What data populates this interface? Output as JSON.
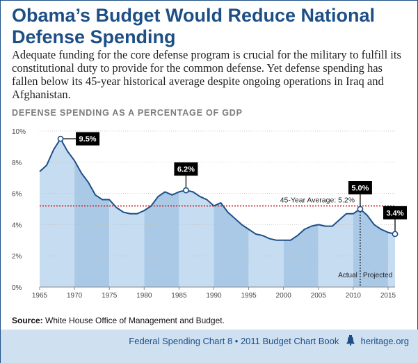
{
  "header": {
    "title_line1": "Obama’s Budget Would Reduce National",
    "title_line2": "Defense Spending",
    "intro": "Adequate funding for the core defense program is crucial for the military to fulfill its constitutional duty to provide for the common defense. Yet defense spending has fallen below its 45-year historical average despite ongoing operations in Iraq and Afghanistan."
  },
  "chart_data": {
    "type": "area",
    "title": "DEFENSE SPENDING AS A PERCENTAGE OF GDP",
    "x": [
      1965,
      1966,
      1967,
      1968,
      1969,
      1970,
      1971,
      1972,
      1973,
      1974,
      1975,
      1976,
      1977,
      1978,
      1979,
      1980,
      1981,
      1982,
      1983,
      1984,
      1985,
      1986,
      1987,
      1988,
      1989,
      1990,
      1991,
      1992,
      1993,
      1994,
      1995,
      1996,
      1997,
      1998,
      1999,
      2000,
      2001,
      2002,
      2003,
      2004,
      2005,
      2006,
      2007,
      2008,
      2009,
      2010,
      2011,
      2012,
      2013,
      2014,
      2015,
      2016
    ],
    "values": [
      7.4,
      7.8,
      8.8,
      9.5,
      8.7,
      8.1,
      7.3,
      6.7,
      5.9,
      5.6,
      5.6,
      5.1,
      4.8,
      4.7,
      4.7,
      4.9,
      5.2,
      5.8,
      6.1,
      5.9,
      6.1,
      6.2,
      6.1,
      5.8,
      5.6,
      5.2,
      5.4,
      4.8,
      4.4,
      4.0,
      3.7,
      3.4,
      3.3,
      3.1,
      3.0,
      3.0,
      3.0,
      3.3,
      3.7,
      3.9,
      4.0,
      3.9,
      3.9,
      4.3,
      4.7,
      4.7,
      5.0,
      4.6,
      4.0,
      3.7,
      3.5,
      3.4
    ],
    "xlim": [
      1965,
      2016
    ],
    "ylim": [
      0,
      10
    ],
    "y_ticks": [
      "0%",
      "2%",
      "4%",
      "6%",
      "8%",
      "10%"
    ],
    "y_tick_values": [
      0,
      2,
      4,
      6,
      8,
      10
    ],
    "x_ticks": [
      "1965",
      "1970",
      "1975",
      "1980",
      "1985",
      "1990",
      "1995",
      "2000",
      "2005",
      "2010",
      "2015"
    ],
    "x_tick_values": [
      1965,
      1970,
      1975,
      1980,
      1985,
      1990,
      1995,
      2000,
      2005,
      2010,
      2015
    ],
    "average": {
      "value": 5.2,
      "label": "45-Year Average: 5.2%"
    },
    "split_year": 2011,
    "split_labels": {
      "left": "Actual",
      "right": "Projected"
    },
    "callouts": [
      {
        "x": 1968,
        "y": 9.5,
        "label": "9.5%",
        "side": "right"
      },
      {
        "x": 1986,
        "y": 6.2,
        "label": "6.2%",
        "side": "above"
      },
      {
        "x": 2011,
        "y": 5.0,
        "label": "5.0%",
        "side": "above"
      },
      {
        "x": 2016,
        "y": 3.4,
        "label": "3.4%",
        "side": "above"
      }
    ],
    "colors": {
      "band_light": "#c6dcf1",
      "band_dark": "#aac9e6",
      "line": "#1d4f86",
      "average_line": "#cc1f1f",
      "grid": "#bfbfbf",
      "callout": "#000000"
    }
  },
  "source": {
    "label": "Source:",
    "text": " White House Office of Management and Budget."
  },
  "footer": {
    "text": "Federal Spending Chart 8 • 2011 Budget Chart Book",
    "site": "heritage.org",
    "icon": "liberty-bell-icon"
  }
}
